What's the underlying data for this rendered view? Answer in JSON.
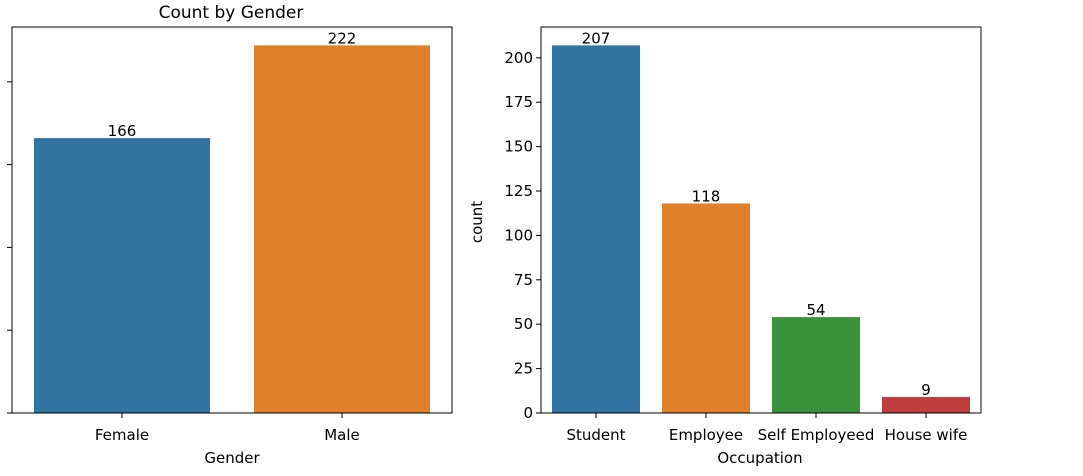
{
  "chart_data": [
    {
      "type": "bar",
      "title": "Count by Gender",
      "xlabel": "Gender",
      "ylabel": "",
      "categories": [
        "Female",
        "Male"
      ],
      "values": [
        166,
        222
      ],
      "data_labels": [
        "166",
        "222"
      ],
      "colors": [
        "#3274a1",
        "#e1812c"
      ],
      "ylim": [
        0,
        233.1
      ],
      "yticks": [
        0,
        50,
        100,
        150,
        200
      ],
      "ytick_labels_visible": false,
      "grid": false,
      "legend": "none"
    },
    {
      "type": "bar",
      "title": "",
      "xlabel": "Occupation",
      "ylabel": "count",
      "categories": [
        "Student",
        "Employee",
        "Self Employeed",
        "House wife"
      ],
      "values": [
        207,
        118,
        54,
        9
      ],
      "data_labels": [
        "207",
        "118",
        "54",
        "9"
      ],
      "colors": [
        "#3274a1",
        "#e1812c",
        "#3a923a",
        "#c03d3e"
      ],
      "ylim": [
        0,
        217.35
      ],
      "yticks": [
        0,
        25,
        50,
        75,
        100,
        125,
        150,
        175,
        200
      ],
      "ytick_labels": [
        "0",
        "25",
        "50",
        "75",
        "100",
        "125",
        "150",
        "175",
        "200"
      ],
      "grid": false,
      "legend": "none"
    }
  ]
}
